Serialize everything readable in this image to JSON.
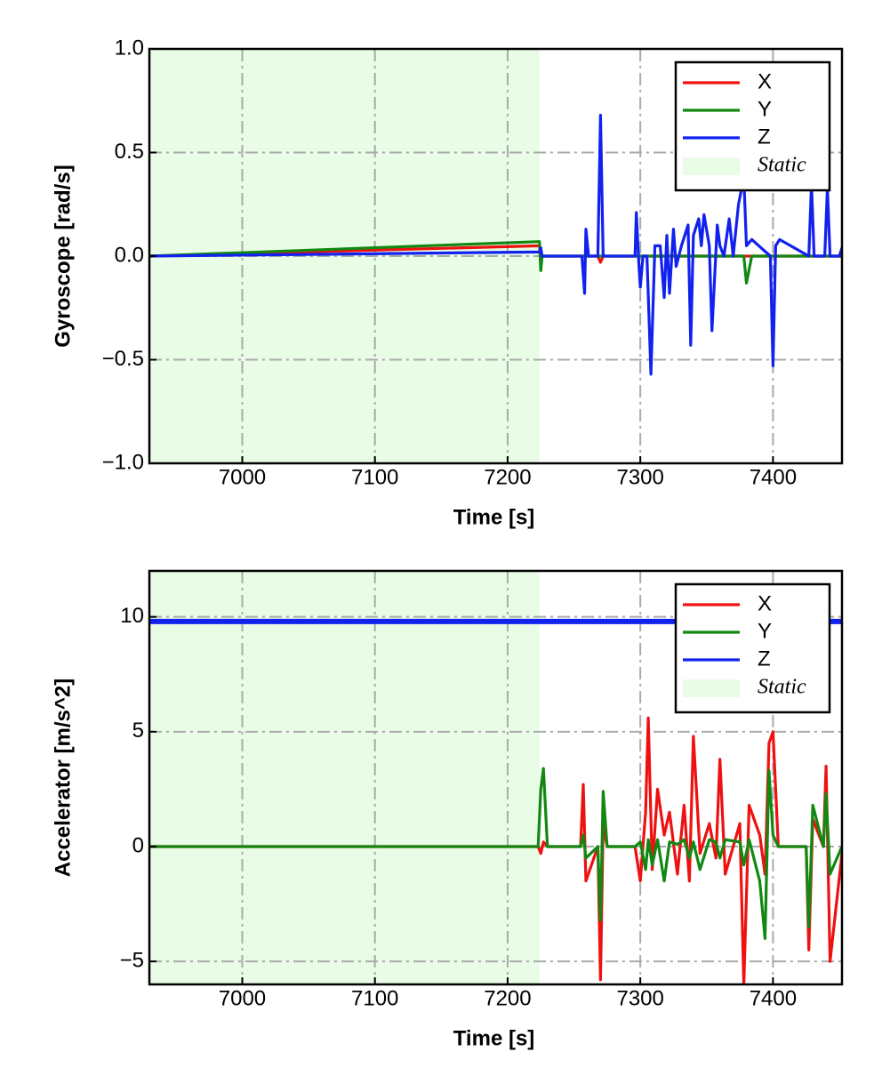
{
  "chart_data": [
    {
      "type": "line",
      "xlabel": "Time [s]",
      "ylabel": "Gyroscope [rad/s]",
      "xlim": [
        6930,
        7452
      ],
      "ylim": [
        -1,
        1
      ],
      "xticks": [
        7000,
        7100,
        7200,
        7300,
        7400
      ],
      "yticks": [
        {
          "value": -1,
          "label": "−1.0"
        },
        {
          "value": -0.5,
          "label": "−0.5"
        },
        {
          "value": 0,
          "label": "0.0"
        },
        0.5,
        {
          "value": 1,
          "label": "1.0"
        }
      ],
      "grid": true,
      "legend": "upper right",
      "span": {
        "name": "Static",
        "color": "#e8fce6",
        "range": [
          6930,
          7224
        ]
      },
      "x": [
        6930,
        7224,
        7225,
        7226,
        7256,
        7258,
        7259,
        7261,
        7268,
        7270,
        7272,
        7296,
        7297,
        7299,
        7300,
        7302,
        7305,
        7308,
        7311,
        7315,
        7318,
        7320,
        7322,
        7325,
        7327,
        7329,
        7331,
        7336,
        7338,
        7340,
        7344,
        7346,
        7348,
        7352,
        7354,
        7358,
        7360,
        7363,
        7367,
        7370,
        7374,
        7378,
        7380,
        7384,
        7398,
        7400,
        7402,
        7405,
        7427,
        7429,
        7431,
        7439,
        7441,
        7443,
        7450,
        7452
      ],
      "series": [
        {
          "name": "X",
          "color": "#ee1111",
          "values": [
            0,
            0.05,
            -0.04,
            0,
            0,
            0,
            0,
            0,
            0,
            -0.03,
            0,
            0,
            0,
            0,
            0,
            0,
            0,
            0,
            0,
            0,
            0,
            0,
            0,
            0,
            0,
            0,
            0,
            0,
            0,
            0,
            0,
            0,
            0,
            0,
            0,
            0,
            0,
            0,
            0,
            0,
            0,
            0,
            0,
            0,
            0,
            0,
            0,
            0,
            0,
            0,
            0,
            0,
            0,
            0,
            0,
            0
          ]
        },
        {
          "name": "Y",
          "color": "#118811",
          "values": [
            0,
            0.07,
            -0.07,
            0,
            0,
            0,
            0,
            0,
            0,
            0,
            0,
            0,
            0,
            0,
            0,
            0,
            0,
            0,
            0,
            0,
            0,
            0,
            0,
            0,
            0,
            0,
            0,
            0,
            0,
            0,
            0,
            0,
            0,
            0,
            0,
            0,
            0,
            0,
            0,
            0,
            0,
            0,
            -0.13,
            0,
            0,
            0,
            0,
            0,
            0,
            0,
            0,
            0,
            0,
            0,
            0,
            0
          ]
        },
        {
          "name": "Z",
          "color": "#1122ee",
          "values": [
            0,
            0.02,
            0.04,
            0,
            0,
            -0.18,
            0.13,
            0,
            0,
            0.68,
            0,
            0,
            0.21,
            -0.05,
            -0.15,
            0,
            0,
            -0.57,
            0.05,
            0.05,
            -0.2,
            0.1,
            -0.18,
            0.13,
            -0.05,
            0,
            0.05,
            0.15,
            -0.43,
            0.1,
            0.18,
            0.05,
            0.2,
            0.05,
            -0.36,
            0.15,
            0.05,
            0,
            0.18,
            0,
            0.25,
            0.38,
            0.05,
            0.08,
            0,
            -0.53,
            0.05,
            0.08,
            0,
            0.35,
            0,
            0,
            0.33,
            0,
            0,
            0.04
          ]
        }
      ]
    },
    {
      "type": "line",
      "xlabel": "Time [s]",
      "ylabel": "Accelerator [m/s^2]",
      "xlim": [
        6930,
        7452
      ],
      "ylim": [
        -6,
        12
      ],
      "xticks": [
        7000,
        7100,
        7200,
        7300,
        7400
      ],
      "yticks": [
        {
          "value": -5,
          "label": "−5"
        },
        0,
        5,
        10
      ],
      "grid": true,
      "legend": "upper right",
      "span": {
        "name": "Static",
        "color": "#e8fce6",
        "range": [
          6930,
          7224
        ]
      },
      "x": [
        6930,
        7223,
        7225,
        7227,
        7230,
        7255,
        7257,
        7259,
        7268,
        7270,
        7272,
        7275,
        7296,
        7300,
        7304,
        7306,
        7309,
        7313,
        7318,
        7322,
        7328,
        7333,
        7337,
        7340,
        7345,
        7352,
        7357,
        7360,
        7364,
        7375,
        7378,
        7382,
        7390,
        7394,
        7397,
        7400,
        7404,
        7425,
        7427,
        7430,
        7438,
        7440,
        7443,
        7452
      ],
      "series": [
        {
          "name": "X",
          "color": "#ee1111",
          "values": [
            0,
            0,
            -0.3,
            0.2,
            0,
            0,
            2.7,
            -1.5,
            0,
            -5.8,
            1,
            0,
            0,
            -1.5,
            1.5,
            5.6,
            -1,
            2.5,
            0.5,
            1.5,
            -1.2,
            1.8,
            -1.5,
            4.8,
            -0.3,
            1,
            -0.5,
            3.8,
            -1.2,
            1,
            -6,
            1.8,
            0.5,
            -1.2,
            4.5,
            5,
            0,
            0,
            -4.5,
            1.2,
            0,
            3.5,
            -5,
            -0.3
          ]
        },
        {
          "name": "Y",
          "color": "#118811",
          "values": [
            0,
            0,
            2.5,
            3.4,
            0,
            0,
            0.5,
            -0.5,
            0,
            -3.2,
            2.4,
            0,
            0,
            0.2,
            -1,
            0.3,
            -0.8,
            0.3,
            -1.5,
            0.2,
            0.1,
            0.3,
            -0.5,
            0.2,
            -1,
            0.3,
            0.2,
            -0.5,
            0.3,
            0.2,
            -0.8,
            0.3,
            -1.5,
            -4,
            3.3,
            0.5,
            0,
            0,
            -3.5,
            1.8,
            0,
            2.3,
            -1.2,
            0
          ]
        },
        {
          "name": "Z",
          "color": "#1122ee",
          "values": [
            9.8,
            9.8,
            9.8,
            9.8,
            9.8,
            9.8,
            9.8,
            9.8,
            9.8,
            9.8,
            9.8,
            9.8,
            9.8,
            9.8,
            9.8,
            9.8,
            9.8,
            9.8,
            9.8,
            9.8,
            9.8,
            9.8,
            9.8,
            9.8,
            9.8,
            9.8,
            9.8,
            9.8,
            9.8,
            9.8,
            9.8,
            9.8,
            9.8,
            9.8,
            9.8,
            9.8,
            9.8,
            9.8,
            9.8,
            9.8,
            9.8,
            9.8,
            9.8,
            9.8
          ]
        }
      ]
    }
  ]
}
